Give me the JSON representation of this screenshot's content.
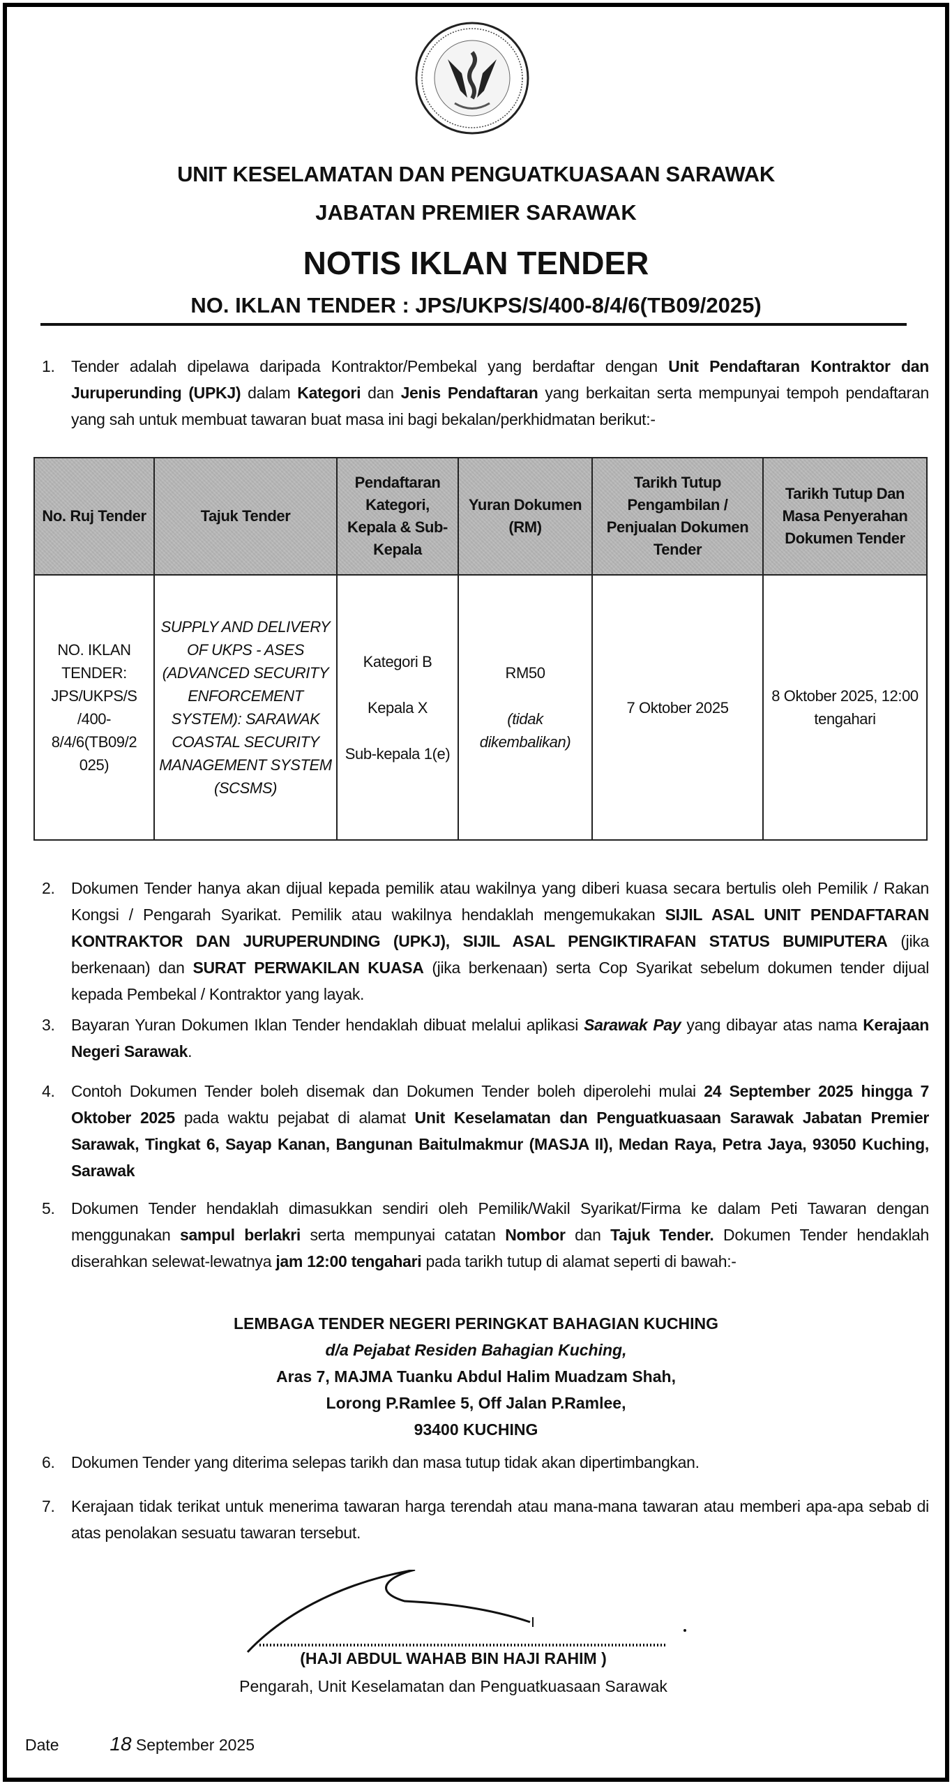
{
  "header": {
    "logo_text": "UNIT KESELAMATAN DAN PENGUATKUASAAN SARAWAK",
    "org_line_1": "UNIT KESELAMATAN DAN PENGUATKUASAAN SARAWAK",
    "org_line_2": "JABATAN PREMIER SARAWAK",
    "title": "NOTIS IKLAN TENDER",
    "tender_no": "NO. IKLAN TENDER : JPS/UKPS/S/400-8/4/6(TB09/2025)"
  },
  "paragraph_1": {
    "number": "1.",
    "parts": [
      {
        "text": "Tender adalah dipelawa daripada Kontraktor/Pembekal yang berdaftar dengan ",
        "bold": false
      },
      {
        "text": "Unit Pendaftaran Kontraktor dan Juruperunding (UPKJ)",
        "bold": true
      },
      {
        "text": " dalam ",
        "bold": false
      },
      {
        "text": "Kategori",
        "bold": true
      },
      {
        "text": " dan ",
        "bold": false
      },
      {
        "text": "Jenis Pendaftaran",
        "bold": true
      },
      {
        "text": " yang berkaitan serta mempunyai tempoh pendaftaran yang sah untuk membuat tawaran buat masa ini bagi bekalan/perkhidmatan berikut:-",
        "bold": false
      }
    ]
  },
  "table": {
    "headers": [
      "No. Ruj Tender",
      "Tajuk Tender",
      "Pendaftaran Kategori, Kepala & Sub-Kepala",
      "Yuran Dokumen (RM)",
      "Tarikh Tutup Pengambilan / Penjualan Dokumen Tender",
      "Tarikh Tutup Dan Masa Penyerahan Dokumen Tender"
    ],
    "row": {
      "ref_no": "NO. IKLAN TENDER: JPS/UKPS/S /400- 8/4/6(TB09/2 025)",
      "title": "SUPPLY AND DELIVERY OF UKPS - ASES (ADVANCED SECURITY ENFORCEMENT SYSTEM): SARAWAK COASTAL SECURITY MANAGEMENT SYSTEM (SCSMS)",
      "kategori": "Kategori B",
      "kepala": "Kepala X",
      "sub_kepala": "Sub-kepala 1(e)",
      "fee": "RM50",
      "fee_note": "(tidak dikembalikan)",
      "sale_close": "7 Oktober 2025",
      "submit_close": "8 Oktober 2025, 12:00 tengahari"
    }
  },
  "paragraph_2": {
    "number": "2.",
    "parts": [
      {
        "text": "Dokumen Tender hanya akan dijual kepada pemilik atau wakilnya yang diberi kuasa secara bertulis oleh Pemilik / Rakan Kongsi / Pengarah Syarikat. Pemilik atau wakilnya hendaklah mengemukakan ",
        "bold": false
      },
      {
        "text": "SIJIL ASAL UNIT PENDAFTARAN KONTRAKTOR DAN JURUPERUNDING (UPKJ), SIJIL ASAL PENGIKTIRAFAN STATUS BUMIPUTERA",
        "bold": true
      },
      {
        "text": " (jika berkenaan) dan ",
        "bold": false
      },
      {
        "text": "SURAT PERWAKILAN KUASA",
        "bold": true
      },
      {
        "text": " (jika berkenaan) serta Cop Syarikat sebelum dokumen tender dijual kepada Pembekal / Kontraktor yang layak.",
        "bold": false
      }
    ]
  },
  "paragraph_3": {
    "number": "3.",
    "parts": [
      {
        "text": "Bayaran Yuran Dokumen Iklan Tender hendaklah dibuat melalui aplikasi ",
        "bold": false
      },
      {
        "text": "Sarawak Pay",
        "bold": true,
        "italic": true
      },
      {
        "text": " yang dibayar atas nama ",
        "bold": false
      },
      {
        "text": "Kerajaan Negeri Sarawak",
        "bold": true
      },
      {
        "text": ".",
        "bold": false
      }
    ]
  },
  "paragraph_4": {
    "number": "4.",
    "parts": [
      {
        "text": "Contoh Dokumen Tender boleh disemak dan Dokumen Tender boleh diperolehi mulai ",
        "bold": false
      },
      {
        "text": "24 September 2025 hingga 7 Oktober 2025",
        "bold": true
      },
      {
        "text": " pada waktu pejabat di alamat ",
        "bold": false
      },
      {
        "text": "Unit Keselamatan dan Penguatkuasaan Sarawak Jabatan Premier Sarawak, Tingkat 6, Sayap Kanan, Bangunan Baitulmakmur (MASJA II), Medan Raya, Petra Jaya, 93050 Kuching, Sarawak",
        "bold": true
      }
    ]
  },
  "paragraph_5": {
    "number": "5.",
    "parts": [
      {
        "text": "Dokumen Tender hendaklah dimasukkan sendiri oleh Pemilik/Wakil Syarikat/Firma ke dalam Peti Tawaran dengan menggunakan ",
        "bold": false
      },
      {
        "text": "sampul berlakri",
        "bold": true
      },
      {
        "text": " serta mempunyai catatan ",
        "bold": false
      },
      {
        "text": "Nombor",
        "bold": true
      },
      {
        "text": " dan ",
        "bold": false
      },
      {
        "text": "Tajuk Tender.",
        "bold": true
      },
      {
        "text": " Dokumen Tender hendaklah diserahkan selewat-lewatnya ",
        "bold": false
      },
      {
        "text": "jam 12:00 tengahari",
        "bold": true
      },
      {
        "text": " pada tarikh tutup di alamat seperti di bawah:-",
        "bold": false
      }
    ]
  },
  "address": {
    "line_1": "LEMBAGA TENDER NEGERI PERINGKAT BAHAGIAN KUCHING",
    "line_2": "d/a Pejabat Residen Bahagian Kuching,",
    "line_3": "Aras 7, MAJMA Tuanku Abdul Halim Muadzam Shah,",
    "line_4": "Lorong P.Ramlee 5, Off Jalan P.Ramlee,",
    "line_5": "93400 KUCHING"
  },
  "paragraph_6": {
    "number": "6.",
    "parts": [
      {
        "text": "Dokumen Tender yang diterima selepas tarikh dan masa tutup tidak akan dipertimbangkan.",
        "bold": false
      }
    ]
  },
  "paragraph_7": {
    "number": "7.",
    "parts": [
      {
        "text": "Kerajaan tidak terikat untuk menerima tawaran harga terendah atau mana-mana tawaran atau memberi apa-apa sebab di atas penolakan sesuatu tawaran tersebut.",
        "bold": false
      }
    ]
  },
  "signature": {
    "name": "(HAJI ABDUL WAHAB BIN HAJI RAHIM )",
    "title": "Pengarah, Unit Keselamatan dan Penguatkuasaan Sarawak"
  },
  "date": {
    "label": "Date",
    "day": "18",
    "month_year": "September 2025"
  }
}
